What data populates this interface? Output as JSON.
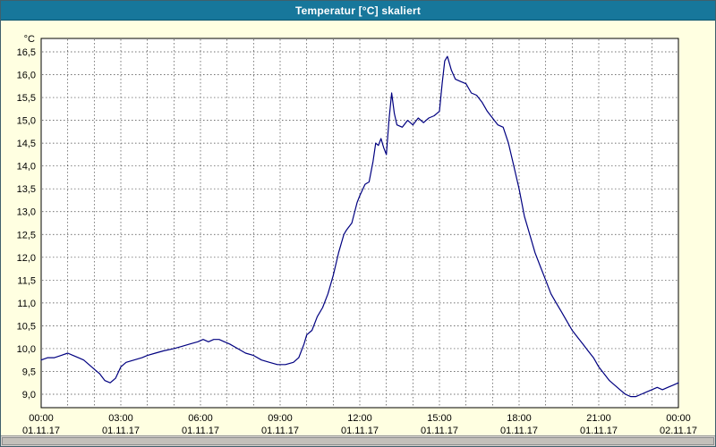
{
  "title": "Temperatur [°C] skaliert",
  "colors": {
    "titlebar_bg": "#17779b",
    "titlebar_text": "#ffffff",
    "window_bg": "#ffffe1",
    "plot_bg": "#ffffff",
    "grid": "#444444",
    "frame": "#000000",
    "line": "#000080",
    "tick_text": "#000000",
    "scrollbar_bg": "#d6d3ce"
  },
  "chart_data": {
    "type": "line",
    "title": "Temperatur [°C] skaliert",
    "y_unit_label": "°C",
    "ylim": [
      9.0,
      16.5
    ],
    "y_tick_step": 0.5,
    "y_tick_labels": [
      "16,5",
      "16,0",
      "15,5",
      "15,0",
      "14,5",
      "14,0",
      "13,5",
      "13,0",
      "12,5",
      "12,0",
      "11,5",
      "11,0",
      "10,5",
      "10,0",
      "9,5",
      "9,0"
    ],
    "x_range_hours": [
      0,
      24
    ],
    "x_ticks": [
      {
        "hour": 0,
        "time": "00:00",
        "date": "01.11.17"
      },
      {
        "hour": 3,
        "time": "03:00",
        "date": "01.11.17"
      },
      {
        "hour": 6,
        "time": "06:00",
        "date": "01.11.17"
      },
      {
        "hour": 9,
        "time": "09:00",
        "date": "01.11.17"
      },
      {
        "hour": 12,
        "time": "12:00",
        "date": "01.11.17"
      },
      {
        "hour": 15,
        "time": "15:00",
        "date": "01.11.17"
      },
      {
        "hour": 18,
        "time": "18:00",
        "date": "01.11.17"
      },
      {
        "hour": 21,
        "time": "21:00",
        "date": "01.11.17"
      },
      {
        "hour": 24,
        "time": "00:00",
        "date": "02.11.17"
      }
    ],
    "grid": {
      "vertical_every_hours": 1,
      "horizontal_every_deg": 0.5,
      "style": "dashed"
    },
    "legend": "none",
    "series": [
      {
        "name": "Temperatur",
        "color": "#000080",
        "points": [
          [
            0.0,
            9.75
          ],
          [
            0.25,
            9.8
          ],
          [
            0.5,
            9.8
          ],
          [
            0.75,
            9.85
          ],
          [
            1.0,
            9.9
          ],
          [
            1.2,
            9.85
          ],
          [
            1.4,
            9.8
          ],
          [
            1.6,
            9.75
          ],
          [
            1.8,
            9.65
          ],
          [
            2.0,
            9.55
          ],
          [
            2.2,
            9.45
          ],
          [
            2.4,
            9.3
          ],
          [
            2.6,
            9.25
          ],
          [
            2.8,
            9.35
          ],
          [
            3.0,
            9.6
          ],
          [
            3.2,
            9.7
          ],
          [
            3.5,
            9.75
          ],
          [
            3.8,
            9.8
          ],
          [
            4.0,
            9.85
          ],
          [
            4.3,
            9.9
          ],
          [
            4.6,
            9.95
          ],
          [
            5.0,
            10.0
          ],
          [
            5.3,
            10.05
          ],
          [
            5.6,
            10.1
          ],
          [
            5.9,
            10.15
          ],
          [
            6.1,
            10.2
          ],
          [
            6.3,
            10.15
          ],
          [
            6.5,
            10.2
          ],
          [
            6.7,
            10.2
          ],
          [
            6.9,
            10.15
          ],
          [
            7.1,
            10.1
          ],
          [
            7.4,
            10.0
          ],
          [
            7.7,
            9.9
          ],
          [
            8.0,
            9.85
          ],
          [
            8.3,
            9.75
          ],
          [
            8.6,
            9.7
          ],
          [
            8.9,
            9.65
          ],
          [
            9.2,
            9.65
          ],
          [
            9.5,
            9.7
          ],
          [
            9.7,
            9.8
          ],
          [
            9.9,
            10.1
          ],
          [
            10.0,
            10.3
          ],
          [
            10.2,
            10.4
          ],
          [
            10.4,
            10.7
          ],
          [
            10.6,
            10.9
          ],
          [
            10.8,
            11.2
          ],
          [
            11.0,
            11.6
          ],
          [
            11.2,
            12.1
          ],
          [
            11.4,
            12.5
          ],
          [
            11.5,
            12.6
          ],
          [
            11.7,
            12.75
          ],
          [
            11.9,
            13.2
          ],
          [
            12.0,
            13.35
          ],
          [
            12.2,
            13.6
          ],
          [
            12.35,
            13.65
          ],
          [
            12.5,
            14.1
          ],
          [
            12.6,
            14.5
          ],
          [
            12.7,
            14.45
          ],
          [
            12.8,
            14.6
          ],
          [
            12.9,
            14.4
          ],
          [
            13.0,
            14.25
          ],
          [
            13.1,
            15.0
          ],
          [
            13.2,
            15.6
          ],
          [
            13.3,
            15.15
          ],
          [
            13.4,
            14.9
          ],
          [
            13.6,
            14.85
          ],
          [
            13.8,
            15.0
          ],
          [
            14.0,
            14.9
          ],
          [
            14.2,
            15.05
          ],
          [
            14.4,
            14.95
          ],
          [
            14.6,
            15.05
          ],
          [
            14.8,
            15.1
          ],
          [
            15.0,
            15.2
          ],
          [
            15.1,
            15.8
          ],
          [
            15.2,
            16.3
          ],
          [
            15.3,
            16.4
          ],
          [
            15.45,
            16.1
          ],
          [
            15.6,
            15.9
          ],
          [
            15.8,
            15.85
          ],
          [
            16.0,
            15.8
          ],
          [
            16.2,
            15.6
          ],
          [
            16.4,
            15.55
          ],
          [
            16.6,
            15.4
          ],
          [
            16.8,
            15.2
          ],
          [
            17.0,
            15.05
          ],
          [
            17.2,
            14.9
          ],
          [
            17.4,
            14.85
          ],
          [
            17.6,
            14.5
          ],
          [
            17.8,
            14.0
          ],
          [
            18.0,
            13.5
          ],
          [
            18.2,
            12.9
          ],
          [
            18.4,
            12.5
          ],
          [
            18.6,
            12.1
          ],
          [
            18.8,
            11.8
          ],
          [
            19.0,
            11.5
          ],
          [
            19.2,
            11.2
          ],
          [
            19.4,
            11.0
          ],
          [
            19.6,
            10.8
          ],
          [
            19.8,
            10.6
          ],
          [
            20.0,
            10.4
          ],
          [
            20.2,
            10.25
          ],
          [
            20.4,
            10.1
          ],
          [
            20.6,
            9.95
          ],
          [
            20.8,
            9.8
          ],
          [
            21.0,
            9.6
          ],
          [
            21.2,
            9.45
          ],
          [
            21.4,
            9.3
          ],
          [
            21.6,
            9.2
          ],
          [
            21.8,
            9.1
          ],
          [
            22.0,
            9.0
          ],
          [
            22.2,
            8.95
          ],
          [
            22.4,
            8.95
          ],
          [
            22.6,
            9.0
          ],
          [
            22.8,
            9.05
          ],
          [
            23.0,
            9.1
          ],
          [
            23.2,
            9.15
          ],
          [
            23.4,
            9.1
          ],
          [
            23.6,
            9.15
          ],
          [
            23.8,
            9.2
          ],
          [
            24.0,
            9.25
          ]
        ]
      }
    ]
  }
}
